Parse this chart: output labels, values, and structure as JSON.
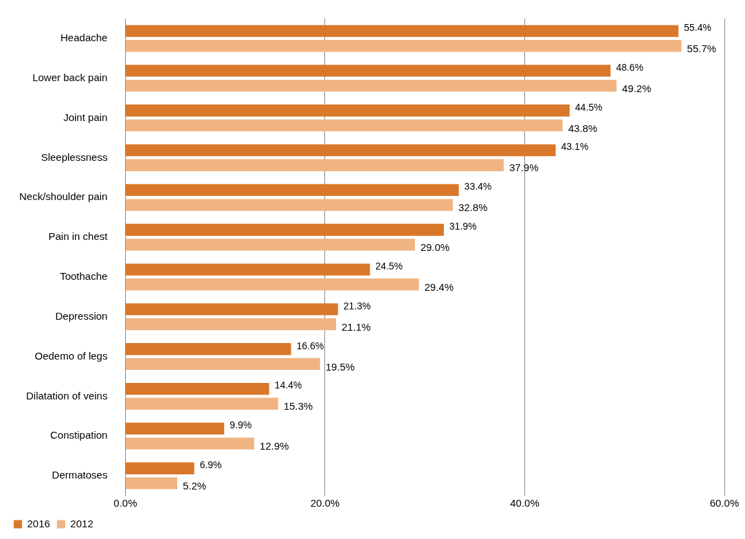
{
  "chart_data": {
    "type": "bar",
    "orientation": "horizontal",
    "categories": [
      "Headache",
      "Lower back pain",
      "Joint pain",
      "Sleeplessness",
      "Neck/shoulder pain",
      "Pain in chest",
      "Toothache",
      "Depression",
      "Oedemo of legs",
      "Dilatation of veins",
      "Constipation",
      "Dermatoses"
    ],
    "series": [
      {
        "name": "2016",
        "color": "#d9782a",
        "values": [
          55.4,
          48.6,
          44.5,
          43.1,
          33.4,
          31.9,
          24.5,
          21.3,
          16.6,
          14.4,
          9.9,
          6.9
        ],
        "value_labels": [
          "55.4%",
          "48.6%",
          "44.5%",
          "43.1%",
          "33.4%",
          "31.9%",
          "24.5%",
          "21.3%",
          "16.6%",
          "14.4%",
          "9.9%",
          "6.9%"
        ]
      },
      {
        "name": "2012",
        "color": "#f0b483",
        "values": [
          55.7,
          49.2,
          43.8,
          37.9,
          32.8,
          29.0,
          29.4,
          21.1,
          19.5,
          15.3,
          12.9,
          5.2
        ],
        "value_labels": [
          "55.7%",
          "49.2%",
          "43.8%",
          "37.9%",
          "32.8%",
          "29.0%",
          "29.4%",
          "21.1%",
          "19.5%",
          "15.3%",
          "12.9%",
          "5.2%"
        ]
      }
    ],
    "xlim": [
      0,
      60
    ],
    "xticks": [
      {
        "value": 0,
        "label": "0.0%"
      },
      {
        "value": 20,
        "label": "20.0%"
      },
      {
        "value": 40,
        "label": "40.0%"
      },
      {
        "value": 60,
        "label": "60.0%"
      }
    ],
    "grid": "x",
    "legend": "bottom left"
  }
}
